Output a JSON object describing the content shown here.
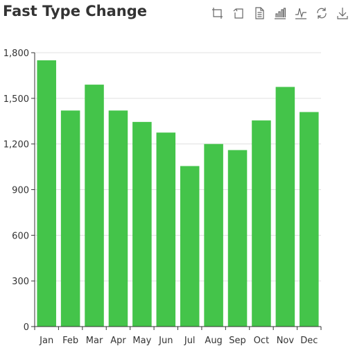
{
  "toolbox": {
    "icons": [
      {
        "name": "zoom-icon",
        "label": "Zoom"
      },
      {
        "name": "zoom-reset-icon",
        "label": "Zoom reset"
      },
      {
        "name": "data-view-icon",
        "label": "Data view"
      },
      {
        "name": "bar-chart-icon",
        "label": "Switch to bar chart"
      },
      {
        "name": "line-chart-icon",
        "label": "Switch to line chart"
      },
      {
        "name": "restore-icon",
        "label": "Restore"
      },
      {
        "name": "save-image-icon",
        "label": "Save as image"
      }
    ]
  },
  "colors": {
    "bar": "#44c44a",
    "grid": "#e0e0e0",
    "axis": "#333333"
  },
  "chart_data": {
    "type": "bar",
    "title": "Fast Type Change",
    "categories": [
      "Jan",
      "Feb",
      "Mar",
      "Apr",
      "May",
      "Jun",
      "Jul",
      "Aug",
      "Sep",
      "Oct",
      "Nov",
      "Dec"
    ],
    "values": [
      1750,
      1420,
      1590,
      1420,
      1345,
      1275,
      1055,
      1200,
      1160,
      1355,
      1575,
      1410
    ],
    "yticks": [
      "0",
      "300",
      "600",
      "900",
      "1,200",
      "1,500",
      "1,800"
    ],
    "ylim": [
      0,
      1800
    ],
    "xlabel": "",
    "ylabel": "",
    "grid": true,
    "legend": false
  }
}
